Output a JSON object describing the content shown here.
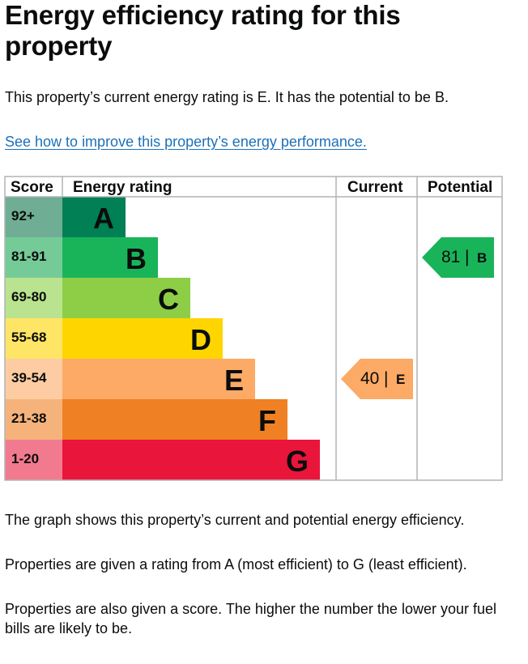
{
  "heading": "Energy efficiency rating for this property",
  "summary": "This property’s current energy rating is E. It has the potential to be B.",
  "improve_link": "See how to improve this property’s energy performance.",
  "colors": {
    "A": "#008054",
    "B": "#19b459",
    "C": "#8dce46",
    "D": "#ffd500",
    "E": "#fcaa65",
    "F": "#ef8023",
    "G": "#e9153b",
    "score_A": "#6fae95",
    "score_B": "#74cb97",
    "score_C": "#b9e38f",
    "score_D": "#ffe566",
    "score_E": "#fdcca2",
    "score_F": "#f5b37b",
    "score_G": "#f27a8f",
    "grid": "#b1b4b6",
    "text": "#0b0c0c",
    "link": "#1d70b8"
  },
  "chart_data": {
    "type": "table",
    "columns": [
      "Score",
      "Energy rating",
      "Current",
      "Potential"
    ],
    "bands": [
      {
        "score": "92+",
        "letter": "A"
      },
      {
        "score": "81-91",
        "letter": "B"
      },
      {
        "score": "69-80",
        "letter": "C"
      },
      {
        "score": "55-68",
        "letter": "D"
      },
      {
        "score": "39-54",
        "letter": "E"
      },
      {
        "score": "21-38",
        "letter": "F"
      },
      {
        "score": "1-20",
        "letter": "G"
      }
    ],
    "current": {
      "value": 40,
      "letter": "E"
    },
    "potential": {
      "value": 81,
      "letter": "B"
    }
  },
  "explanation": [
    "The graph shows this property’s current and potential energy efficiency.",
    "Properties are given a rating from A (most efficient) to G (least efficient).",
    "Properties are also given a score. The higher the number the lower your fuel bills are likely to be."
  ]
}
